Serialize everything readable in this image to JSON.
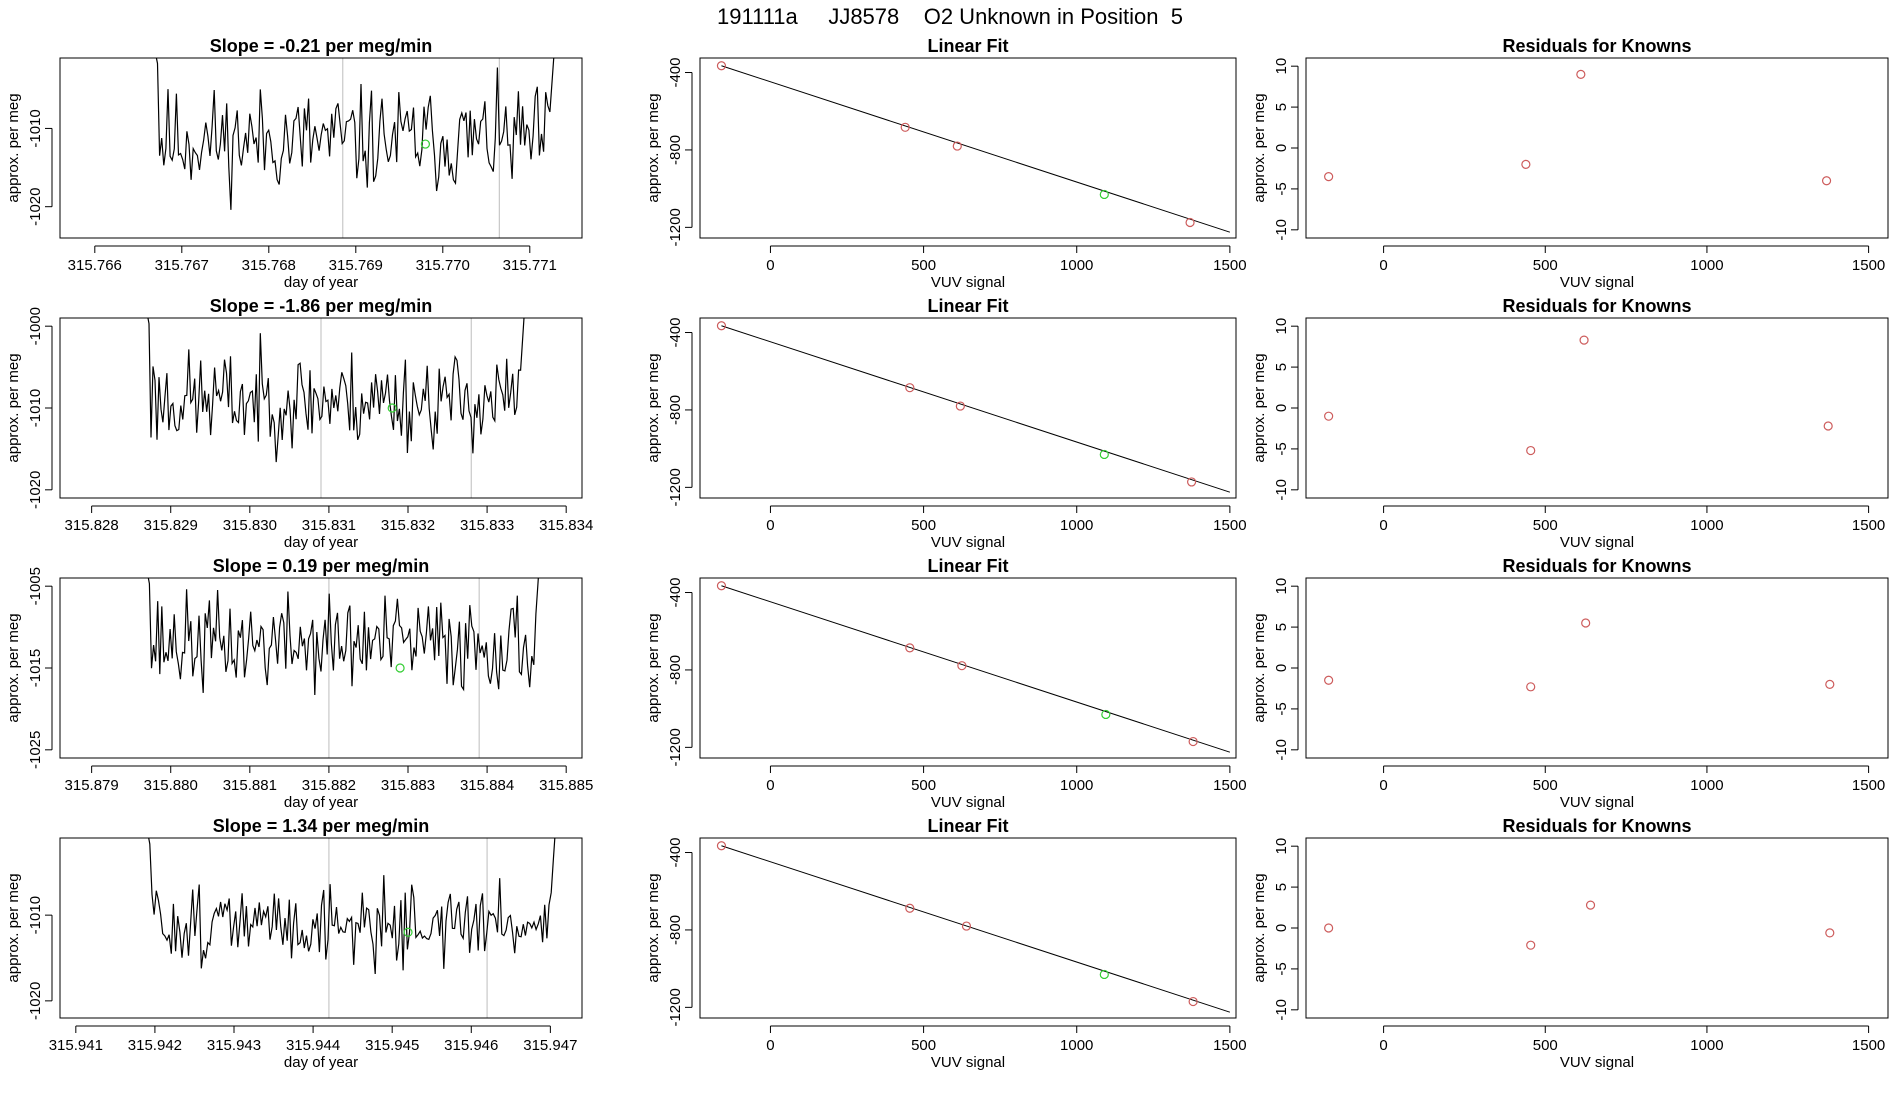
{
  "figure_title": "191111a     JJ8578    O2 Unknown in Position  5",
  "colors": {
    "trace": "#000000",
    "known_point": "#cd5c5c",
    "unknown_point": "#32cd32",
    "vline": "#c8c8c8"
  },
  "chart_data": [
    {
      "type": "line",
      "row": 0,
      "title": "Slope =  -0.21  per meg/min",
      "xlabel": "day of year",
      "ylabel": "approx. per meg",
      "xlim": [
        315.7656,
        315.7716
      ],
      "ylim": [
        -1024,
        -1001
      ],
      "xticks": [
        "315.766",
        "315.767",
        "315.768",
        "315.769",
        "315.770",
        "315.771"
      ],
      "yticks": [
        "-1010",
        "-1020"
      ],
      "x_start": 315.7666,
      "x_end": 315.7714,
      "n_points": 200,
      "base": -1011.5,
      "amplitude": 5,
      "seed": 11,
      "vlines": [
        315.76885,
        315.77065
      ],
      "unknown_point": [
        315.7698,
        -1012
      ]
    },
    {
      "type": "scatter",
      "row": 0,
      "title": "Linear Fit",
      "xlabel": "VUV signal",
      "ylabel": "approx. per meg",
      "xlim": [
        -230,
        1520
      ],
      "ylim": [
        -1255,
        -325
      ],
      "xticks": [
        "0",
        "500",
        "1000",
        "1500"
      ],
      "yticks": [
        "-400",
        "-800",
        "-1200"
      ],
      "fit_line": [
        [
          -160,
          -365
        ],
        [
          1500,
          -1225
        ]
      ],
      "knowns": [
        [
          -160,
          -365
        ],
        [
          440,
          -683
        ],
        [
          610,
          -780
        ],
        [
          1370,
          -1175
        ]
      ],
      "unknown": [
        [
          1090,
          -1030
        ]
      ]
    },
    {
      "type": "scatter",
      "row": 0,
      "title": "Residuals for Knowns",
      "xlabel": "VUV signal",
      "ylabel": "approx. per meg",
      "xlim": [
        -240,
        1560
      ],
      "ylim": [
        -11,
        11
      ],
      "xticks": [
        "0",
        "500",
        "1000",
        "1500"
      ],
      "yticks": [
        "10",
        "5",
        "0",
        "-5",
        "-10"
      ],
      "points": [
        [
          -170,
          -3.5
        ],
        [
          440,
          -2
        ],
        [
          610,
          9
        ],
        [
          1370,
          -4
        ]
      ]
    },
    {
      "type": "line",
      "row": 1,
      "title": "Slope =  -1.86  per meg/min",
      "xlabel": "day of year",
      "ylabel": "approx. per meg",
      "xlim": [
        315.8276,
        315.8342
      ],
      "ylim": [
        -1021,
        -999
      ],
      "xticks": [
        "315.828",
        "315.829",
        "315.830",
        "315.831",
        "315.832",
        "315.833",
        "315.834"
      ],
      "yticks": [
        "-1000",
        "-1010",
        "-1020"
      ],
      "x_start": 315.8286,
      "x_end": 315.8336,
      "n_points": 200,
      "base": -1009,
      "amplitude": 4.5,
      "seed": 23,
      "vlines": [
        315.8309,
        315.8328
      ],
      "unknown_point": [
        315.8318,
        -1010
      ]
    },
    {
      "type": "scatter",
      "row": 1,
      "title": "Linear Fit",
      "xlabel": "VUV signal",
      "ylabel": "approx. per meg",
      "xlim": [
        -230,
        1520
      ],
      "ylim": [
        -1255,
        -325
      ],
      "xticks": [
        "0",
        "500",
        "1000",
        "1500"
      ],
      "yticks": [
        "-400",
        "-800",
        "-1200"
      ],
      "fit_line": [
        [
          -160,
          -365
        ],
        [
          1500,
          -1225
        ]
      ],
      "knowns": [
        [
          -160,
          -365
        ],
        [
          455,
          -685
        ],
        [
          620,
          -780
        ],
        [
          1375,
          -1172
        ]
      ],
      "unknown": [
        [
          1090,
          -1030
        ]
      ]
    },
    {
      "type": "scatter",
      "row": 1,
      "title": "Residuals for Knowns",
      "xlabel": "VUV signal",
      "ylabel": "approx. per meg",
      "xlim": [
        -240,
        1560
      ],
      "ylim": [
        -11,
        11
      ],
      "xticks": [
        "0",
        "500",
        "1000",
        "1500"
      ],
      "yticks": [
        "10",
        "5",
        "0",
        "-5",
        "-10"
      ],
      "points": [
        [
          -170,
          -1
        ],
        [
          455,
          -5.2
        ],
        [
          620,
          8.3
        ],
        [
          1375,
          -2.2
        ]
      ]
    },
    {
      "type": "line",
      "row": 2,
      "title": "Slope =  0.19  per meg/min",
      "xlabel": "day of year",
      "ylabel": "approx. per meg",
      "xlim": [
        315.8786,
        315.8852
      ],
      "ylim": [
        -1026,
        -1004
      ],
      "xticks": [
        "315.879",
        "315.880",
        "315.881",
        "315.882",
        "315.883",
        "315.884",
        "315.885"
      ],
      "yticks": [
        "-1005",
        "-1015",
        "-1025"
      ],
      "x_start": 315.8796,
      "x_end": 315.8848,
      "n_points": 200,
      "base": -1012,
      "amplitude": 4.5,
      "seed": 37,
      "vlines": [
        315.882,
        315.8839
      ],
      "unknown_point": [
        315.8829,
        -1015
      ]
    },
    {
      "type": "scatter",
      "row": 2,
      "title": "Linear Fit",
      "xlabel": "VUV signal",
      "ylabel": "approx. per meg",
      "xlim": [
        -230,
        1520
      ],
      "ylim": [
        -1255,
        -325
      ],
      "xticks": [
        "0",
        "500",
        "1000",
        "1500"
      ],
      "yticks": [
        "-400",
        "-800",
        "-1200"
      ],
      "fit_line": [
        [
          -160,
          -365
        ],
        [
          1500,
          -1225
        ]
      ],
      "knowns": [
        [
          -160,
          -365
        ],
        [
          455,
          -686
        ],
        [
          625,
          -778
        ],
        [
          1380,
          -1170
        ]
      ],
      "unknown": [
        [
          1095,
          -1030
        ]
      ]
    },
    {
      "type": "scatter",
      "row": 2,
      "title": "Residuals for Knowns",
      "xlabel": "VUV signal",
      "ylabel": "approx. per meg",
      "xlim": [
        -240,
        1560
      ],
      "ylim": [
        -11,
        11
      ],
      "xticks": [
        "0",
        "500",
        "1000",
        "1500"
      ],
      "yticks": [
        "10",
        "5",
        "0",
        "-5",
        "-10"
      ],
      "points": [
        [
          -170,
          -1.5
        ],
        [
          455,
          -2.3
        ],
        [
          625,
          5.5
        ],
        [
          1380,
          -2
        ]
      ]
    },
    {
      "type": "line",
      "row": 3,
      "title": "Slope =  1.34  per meg/min",
      "xlabel": "day of year",
      "ylabel": "approx. per meg",
      "xlim": [
        315.9408,
        315.9474
      ],
      "ylim": [
        -1022,
        -1001
      ],
      "xticks": [
        "315.941",
        "315.942",
        "315.943",
        "315.944",
        "315.945",
        "315.946",
        "315.947"
      ],
      "yticks": [
        "-1010",
        "-1020"
      ],
      "x_start": 315.9418,
      "x_end": 315.9472,
      "n_points": 200,
      "base": -1011,
      "amplitude": 3.5,
      "seed": 51,
      "vlines": [
        315.9442,
        315.9462
      ],
      "unknown_point": [
        315.9452,
        -1012
      ]
    },
    {
      "type": "scatter",
      "row": 3,
      "title": "Linear Fit",
      "xlabel": "VUV signal",
      "ylabel": "approx. per meg",
      "xlim": [
        -230,
        1520
      ],
      "ylim": [
        -1255,
        -325
      ],
      "xticks": [
        "0",
        "500",
        "1000",
        "1500"
      ],
      "yticks": [
        "-400",
        "-800",
        "-1200"
      ],
      "fit_line": [
        [
          -160,
          -365
        ],
        [
          1500,
          -1225
        ]
      ],
      "knowns": [
        [
          -160,
          -365
        ],
        [
          455,
          -688
        ],
        [
          640,
          -780
        ],
        [
          1380,
          -1170
        ]
      ],
      "unknown": [
        [
          1090,
          -1030
        ]
      ]
    },
    {
      "type": "scatter",
      "row": 3,
      "title": "Residuals for Knowns",
      "xlabel": "VUV signal",
      "ylabel": "approx. per meg",
      "xlim": [
        -240,
        1560
      ],
      "ylim": [
        -11,
        11
      ],
      "xticks": [
        "0",
        "500",
        "1000",
        "1500"
      ],
      "yticks": [
        "10",
        "5",
        "0",
        "-5",
        "-10"
      ],
      "points": [
        [
          -170,
          0
        ],
        [
          455,
          -2.1
        ],
        [
          640,
          2.8
        ],
        [
          1380,
          -0.6
        ]
      ]
    }
  ]
}
